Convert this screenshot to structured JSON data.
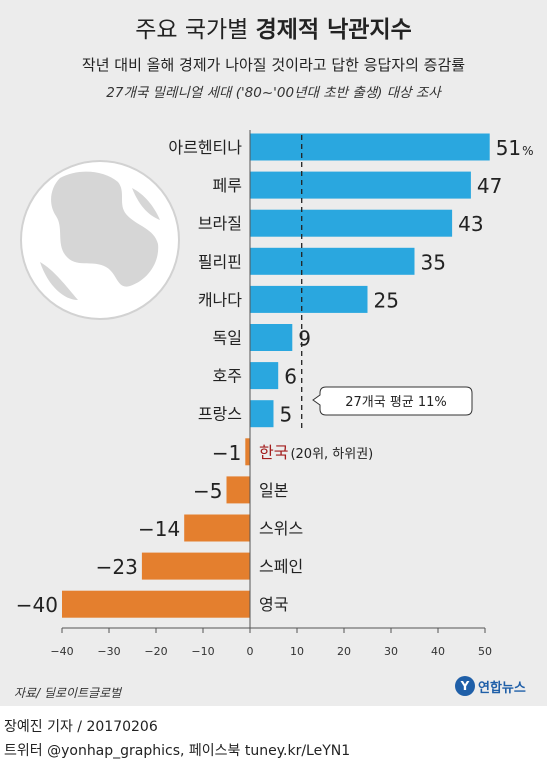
{
  "header": {
    "title_normal": "주요 국가별 ",
    "title_bold": "경제적 낙관지수",
    "subtitle": "작년 대비 올해 경제가 나아질 것이라고 답한 응답자의 증감률",
    "note": "27개국 밀레니얼 세대 ('80~'00년대 초반 출생) 대상 조사"
  },
  "colors": {
    "positive": "#2aa7df",
    "negative": "#e47f2e",
    "korea": "#a31d1d",
    "background": "#ececec",
    "logo": "#1f5fa8"
  },
  "chart_data": {
    "type": "bar",
    "orientation": "horizontal",
    "categories": [
      "아르헨티나",
      "페루",
      "브라질",
      "필리핀",
      "캐나다",
      "독일",
      "호주",
      "프랑스",
      "한국",
      "일본",
      "스위스",
      "스페인",
      "영국"
    ],
    "values": [
      51,
      47,
      43,
      35,
      25,
      9,
      6,
      5,
      -1,
      -5,
      -14,
      -23,
      -40
    ],
    "value_labels": [
      "51",
      "47",
      "43",
      "35",
      "25",
      "9",
      "6",
      "5",
      "−1",
      "−5",
      "−14",
      "−23",
      "−40"
    ],
    "first_value_unit": "%",
    "korea_suffix": "(20위, 하위권)",
    "xlim": [
      -40,
      50
    ],
    "xticks": [
      -40,
      -30,
      -20,
      -10,
      0,
      10,
      20,
      30,
      40,
      50
    ],
    "xtick_labels": [
      "−40",
      "−30",
      "−20",
      "−10",
      "0",
      "10",
      "20",
      "30",
      "40",
      "50"
    ],
    "average": {
      "value": 11,
      "label": "27개국 평균 11%"
    },
    "xlabel": "",
    "ylabel": ""
  },
  "source": "자료/ 딜로이트글로벌",
  "logo": {
    "mark": "Y",
    "text": "연합뉴스"
  },
  "footer": {
    "reporter": "장예진 기자 / 20170206",
    "twitter": "트위터 @yonhap_graphics, 페이스북 tuney.kr/LeYN1"
  }
}
